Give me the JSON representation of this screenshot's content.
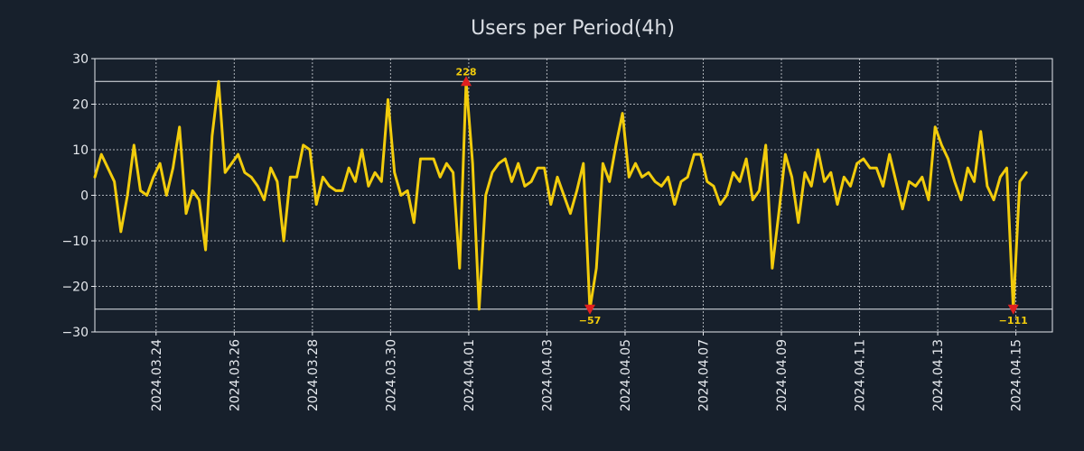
{
  "chart_data": {
    "type": "line",
    "title": "Users per Period(4h)",
    "xlabel": "",
    "ylabel": "",
    "ylim": [
      -30,
      30
    ],
    "yticks": [
      30,
      20,
      10,
      0,
      -10,
      -20,
      -30
    ],
    "ytick_labels": [
      "30",
      "20",
      "10",
      "0",
      "−10",
      "−20",
      "−30"
    ],
    "xlim": [
      0,
      147
    ],
    "xticks": [
      {
        "x": 9.4,
        "label": "2024.03.24"
      },
      {
        "x": 21.4,
        "label": "2024.03.26"
      },
      {
        "x": 33.4,
        "label": "2024.03.28"
      },
      {
        "x": 45.4,
        "label": "2024.03.30"
      },
      {
        "x": 57.4,
        "label": "2024.04.01"
      },
      {
        "x": 69.4,
        "label": "2024.04.03"
      },
      {
        "x": 81.4,
        "label": "2024.04.05"
      },
      {
        "x": 93.4,
        "label": "2024.04.07"
      },
      {
        "x": 105.4,
        "label": "2024.04.09"
      },
      {
        "x": 117.4,
        "label": "2024.04.11"
      },
      {
        "x": 129.4,
        "label": "2024.04.13"
      },
      {
        "x": 141.4,
        "label": "2024.04.15"
      }
    ],
    "reference_lines": [
      25,
      -25
    ],
    "grid": true,
    "series": [
      {
        "name": "users",
        "color": "#f2cc0c",
        "values": [
          4,
          9,
          6,
          3,
          -8,
          0,
          11,
          1,
          0,
          4,
          7,
          0,
          6,
          15,
          -4,
          1,
          -1,
          -12,
          13,
          25,
          5,
          7,
          9,
          5,
          4,
          2,
          -1,
          6,
          3,
          -10,
          4,
          4,
          11,
          10,
          -2,
          4,
          2,
          1,
          1,
          6,
          3,
          10,
          2,
          5,
          3,
          21,
          5,
          0,
          1,
          -6,
          8,
          8,
          8,
          4,
          7,
          5,
          -16,
          25,
          7,
          -25,
          0,
          5,
          7,
          8,
          3,
          7,
          2,
          3,
          6,
          6,
          -2,
          4,
          0,
          -4,
          1,
          7,
          -25,
          -16,
          7,
          3,
          11,
          18,
          4,
          7,
          4,
          5,
          3,
          2,
          4,
          -2,
          3,
          4,
          9,
          9,
          3,
          2,
          -2,
          0,
          5,
          3,
          8,
          -1,
          1,
          11,
          -16,
          -4,
          9,
          4,
          -6,
          5,
          2,
          10,
          3,
          5,
          -2,
          4,
          2,
          7,
          8,
          6,
          6,
          2,
          9,
          3,
          -3,
          3,
          2,
          4,
          -1,
          15,
          11,
          8,
          3,
          -1,
          6,
          3,
          14,
          2,
          -1,
          4,
          6,
          -25,
          3,
          5
        ]
      }
    ],
    "annotations": [
      {
        "x": 57,
        "y": 25,
        "label": "228",
        "direction": "up"
      },
      {
        "x": 76,
        "y": -25,
        "label": "−57",
        "direction": "down"
      },
      {
        "x": 141,
        "y": -25,
        "label": "−111",
        "direction": "down"
      }
    ]
  }
}
